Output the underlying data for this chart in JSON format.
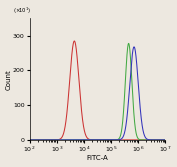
{
  "title": "",
  "xlabel": "FITC-A",
  "ylabel": "Count",
  "xlim_log": [
    2,
    7
  ],
  "ylim": [
    0,
    350
  ],
  "yticks": [
    0,
    100,
    200,
    300
  ],
  "background_color": "#ede8e0",
  "red_peak": 3.65,
  "green_peak": 5.65,
  "blue_peak": 5.85,
  "red_color": "#cc3333",
  "green_color": "#44aa44",
  "blue_color": "#3333bb",
  "red_sigma": 0.17,
  "green_sigma": 0.12,
  "blue_sigma": 0.155,
  "red_height": 285,
  "green_height": 278,
  "blue_height": 268,
  "linewidth": 0.75,
  "tick_labelsize": 4.5,
  "xlabel_fontsize": 5,
  "ylabel_fontsize": 5,
  "sci_note_fontsize": 3.8
}
